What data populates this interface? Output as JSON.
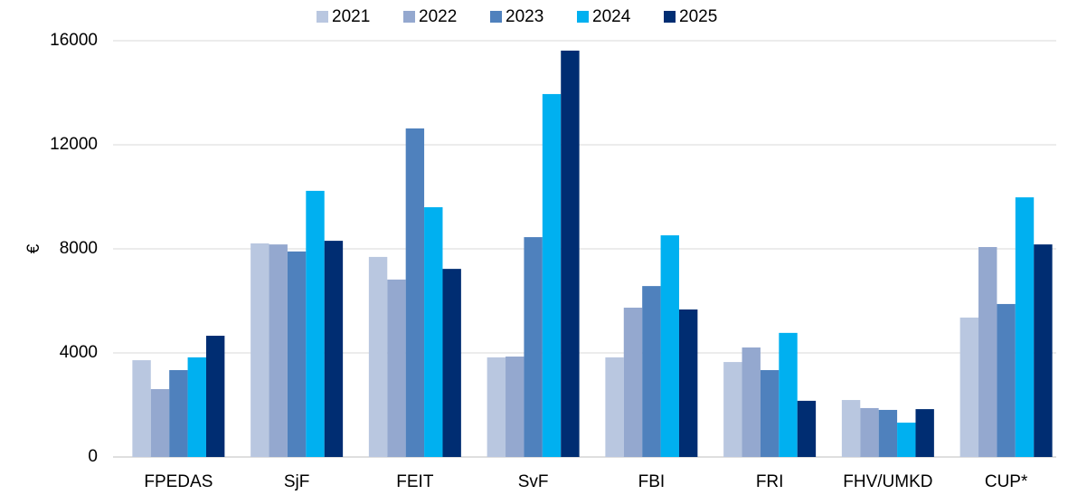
{
  "chart_data": {
    "type": "bar",
    "y_label": "€",
    "categories": [
      "FPEDAS",
      "SjF",
      "FEIT",
      "SvF",
      "FBI",
      "FRI",
      "FHV/UMKD",
      "CUP*"
    ],
    "series": [
      {
        "name": "2021",
        "color": "#b9c7e0",
        "values": [
          3720,
          8210,
          7690,
          3830,
          3830,
          3650,
          2190,
          5360
        ]
      },
      {
        "name": "2022",
        "color": "#94a8cf",
        "values": [
          2610,
          8170,
          6820,
          3860,
          5740,
          4210,
          1880,
          8070
        ]
      },
      {
        "name": "2023",
        "color": "#4f81bd",
        "values": [
          3340,
          7900,
          12630,
          8450,
          6570,
          3340,
          1810,
          5880
        ]
      },
      {
        "name": "2024",
        "color": "#00b0f0",
        "values": [
          3830,
          10230,
          9600,
          13950,
          8520,
          4770,
          1320,
          9980
        ]
      },
      {
        "name": "2025",
        "color": "#002d72",
        "values": [
          4660,
          8310,
          7230,
          15620,
          5670,
          2160,
          1840,
          8170
        ]
      }
    ],
    "ylim": [
      0,
      16000
    ],
    "yticks": [
      0,
      4000,
      8000,
      12000,
      16000
    ],
    "grid": true,
    "legend": "top"
  }
}
